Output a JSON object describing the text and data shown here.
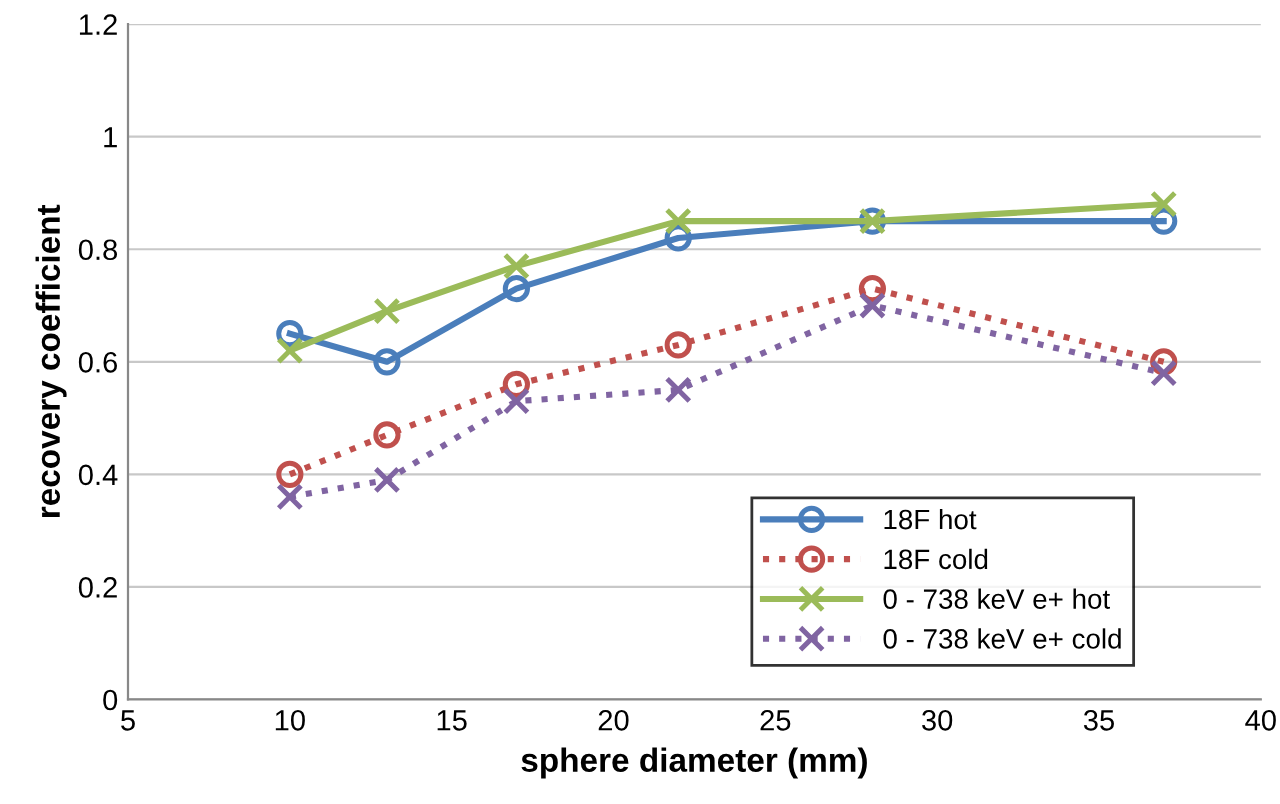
{
  "chart_data": {
    "type": "line",
    "xlabel": "sphere diameter (mm)",
    "ylabel": "recovery coefficient",
    "x": [
      10,
      13,
      17,
      22,
      28,
      37
    ],
    "series": [
      {
        "name": "18F hot",
        "color": "#4a7ebb",
        "marker": "circle",
        "line_style": "solid",
        "values": [
          0.65,
          0.6,
          0.73,
          0.82,
          0.85,
          0.85
        ]
      },
      {
        "name": "18F cold",
        "color": "#c0504d",
        "marker": "circle",
        "line_style": "dotted",
        "values": [
          0.4,
          0.47,
          0.56,
          0.63,
          0.73,
          0.6
        ]
      },
      {
        "name": "0 - 738 keV e+ hot",
        "color": "#9bbb59",
        "marker": "cross",
        "line_style": "solid",
        "values": [
          0.62,
          0.69,
          0.77,
          0.85,
          0.85,
          0.88
        ]
      },
      {
        "name": "0 - 738 keV e+ cold",
        "color": "#8064a2",
        "marker": "cross",
        "line_style": "dotted",
        "values": [
          0.36,
          0.39,
          0.53,
          0.55,
          0.7,
          0.58
        ]
      }
    ],
    "xlim": [
      5,
      40
    ],
    "xticks": [
      5,
      10,
      15,
      20,
      25,
      30,
      35,
      40
    ],
    "ylim": [
      0,
      1.2
    ],
    "yticks": [
      0,
      0.2,
      0.4,
      0.6,
      0.8,
      1,
      1.2
    ],
    "grid": "y",
    "legend": "bottom right"
  }
}
